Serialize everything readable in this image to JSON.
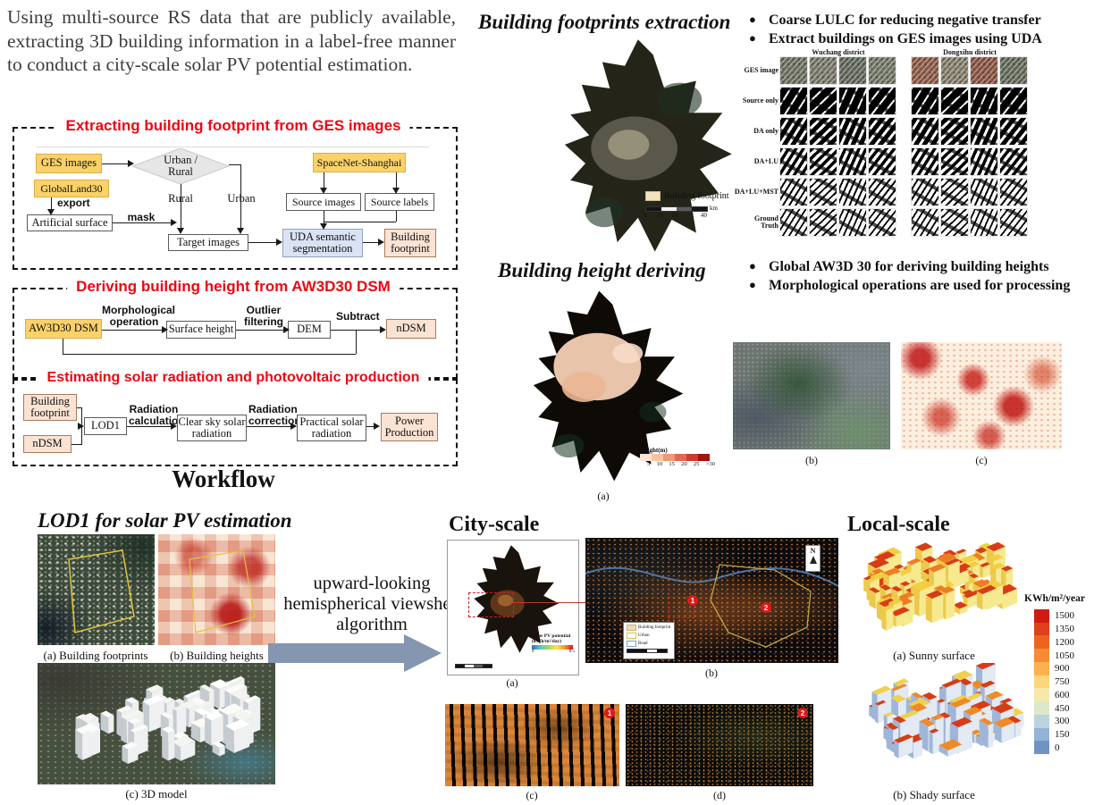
{
  "intro": {
    "text": "Using multi-source RS data that are publicly available, extracting 3D building information in a label-free manner to conduct a city-scale solar PV potential estimation."
  },
  "workflow": {
    "caption": "Workflow",
    "sections": [
      {
        "title": "Extracting building footprint from GES images"
      },
      {
        "title": "Deriving building height from AW3D30 DSM"
      },
      {
        "title": "Estimating solar radiation and photovoltaic production"
      }
    ],
    "s1": {
      "ges": "GES images",
      "globalland": "GlobalLand30",
      "export": "export",
      "artificial": "Artificial surface",
      "mask": "mask",
      "decision": "Urban / Rural",
      "rural": "Rural",
      "urban": "Urban",
      "target": "Target images",
      "spacenet": "SpaceNet-Shanghai",
      "source_images": "Source images",
      "source_labels": "Source labels",
      "uda": "UDA semantic segmentation",
      "footprint": "Building footprint"
    },
    "s2": {
      "aw3d30": "AW3D30 DSM",
      "morph": "Morphological operation",
      "surface": "Surface height",
      "outlier": "Outlier filtering",
      "dem": "DEM",
      "subtract": "Subtract",
      "ndsm": "nDSM"
    },
    "s3": {
      "footprint": "Building footprint",
      "ndsm": "nDSM",
      "lod1": "LOD1",
      "rad_calc": "Radiation calculation",
      "clear_sky": "Clear sky solar radiation",
      "rad_corr": "Radiation correction",
      "practical": "Practical solar radiation",
      "power": "Power Production"
    }
  },
  "footprint_section": {
    "title": "Building footprints extraction",
    "bullets": [
      "Coarse LULC for reducing negative transfer",
      "Extract buildings on GES images using UDA"
    ],
    "map_legend": "Buliding footprint",
    "scalebar_ticks": [
      "0",
      "10",
      "20",
      "40"
    ],
    "scalebar_unit": "km",
    "grid": {
      "group_headers": [
        "Wuchang district",
        "Dongxihu district"
      ],
      "row_labels": [
        "GES image",
        "Source only",
        "DA only",
        "DA+LU",
        "DA+LU+MST",
        "Ground Truth"
      ]
    }
  },
  "height_section": {
    "title": "Building height deriving",
    "bullets": [
      "Global AW3D 30 for deriving building heights",
      "Morphological operations are used for processing"
    ],
    "legend_title": "Height(m)",
    "legend_ticks": [
      "5",
      "10",
      "15",
      "20",
      "25",
      ">30"
    ],
    "legend_colors": [
      "#fbe3d4",
      "#f6c3a0",
      "#ee9878",
      "#e06a4d",
      "#cb3d2e",
      "#a31212"
    ],
    "caption_a": "(a)",
    "caption_b": "(b)",
    "caption_c": "(c)"
  },
  "lod1_section": {
    "title": "LOD1 for solar PV estimation",
    "caption_a": "(a) Building footprints",
    "caption_b": "(b) Building heights",
    "caption_c": "(c) 3D model"
  },
  "algorithm_text": "upward-looking hemispherical viewshed algorithm",
  "city_scale": {
    "title": "City-scale",
    "pv_legend_title": "Solar PV potential",
    "pv_legend_unit": "(kWh/m²/day)",
    "pv_min": "0",
    "pv_max": "0.5",
    "legend_items": [
      "Building footprint",
      "Urban",
      "Road"
    ],
    "north": "N",
    "marker1": "1",
    "marker2": "2",
    "caption_a": "(a)",
    "caption_b": "(b)",
    "caption_c": "(c)",
    "caption_d": "(d)"
  },
  "local_scale": {
    "title": "Local-scale",
    "colorbar_title": "KWh/m²/year",
    "colorbar_ticks": [
      "1500",
      "1350",
      "1200",
      "1050",
      "900",
      "750",
      "600",
      "450",
      "300",
      "150",
      "0"
    ],
    "colorbar_colors": [
      "#cf1b12",
      "#e0401d",
      "#ec6420",
      "#f58b35",
      "#fbb24e",
      "#fdd57b",
      "#f5e9a9",
      "#dde8c9",
      "#b9d3e0",
      "#93b4d6",
      "#6f94c4"
    ],
    "caption_a": "(a) Sunny surface",
    "caption_b": "(b) Shady surface"
  },
  "colors": {
    "accent_red": "#ec0713",
    "big_arrow": "#8496b0",
    "box_yellow": "#fbd269",
    "box_peach": "#fbe3d3",
    "box_blue": "#dae3f3"
  }
}
